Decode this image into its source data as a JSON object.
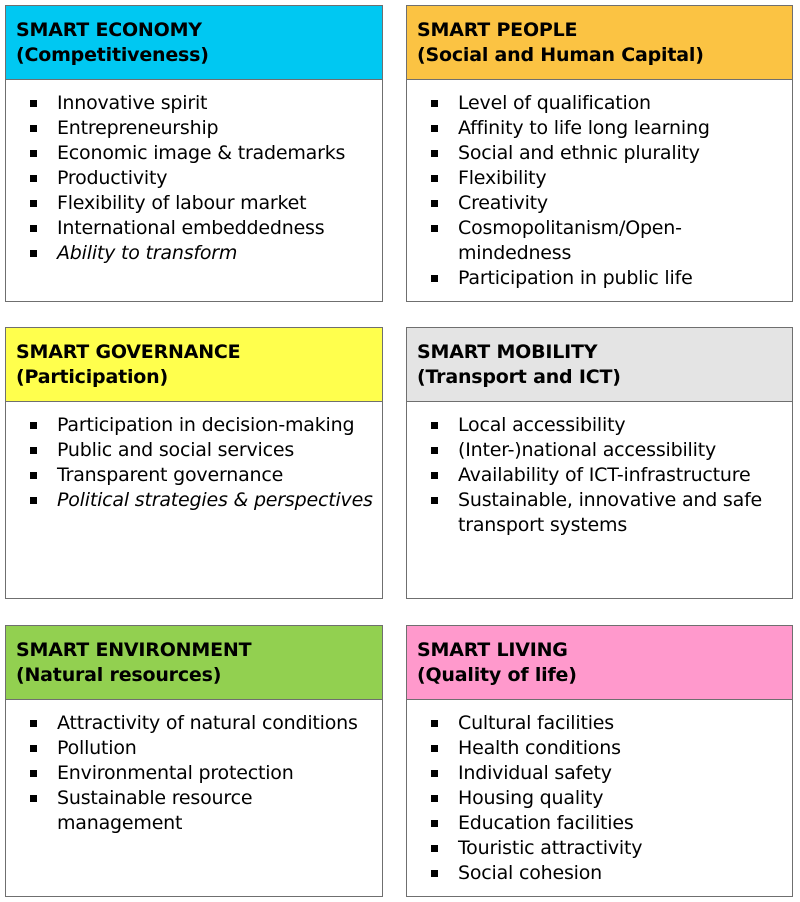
{
  "colors": {
    "economy": "#00c8f2",
    "people": "#fbc343",
    "governance": "#ffff4d",
    "mobility": "#e4e4e4",
    "environment": "#92d050",
    "living": "#ff99cc",
    "border": "#6f6f6f"
  },
  "cards": [
    {
      "id": "economy",
      "title": "SMART ECONOMY",
      "subtitle": "(Competitiveness)",
      "items": [
        {
          "text": "Innovative spirit",
          "italic": false
        },
        {
          "text": "Entrepreneurship",
          "italic": false
        },
        {
          "text": "Economic image & trademarks",
          "italic": false
        },
        {
          "text": "Productivity",
          "italic": false
        },
        {
          "text": "Flexibility of labour market",
          "italic": false
        },
        {
          "text": "International embeddedness",
          "italic": false
        },
        {
          "text": "Ability to transform",
          "italic": true
        }
      ]
    },
    {
      "id": "people",
      "title": "SMART PEOPLE",
      "subtitle": "(Social and Human Capital)",
      "items": [
        {
          "text": "Level of qualification",
          "italic": false
        },
        {
          "text": "Affinity to life long learning",
          "italic": false
        },
        {
          "text": "Social and ethnic plurality",
          "italic": false
        },
        {
          "text": "Flexibility",
          "italic": false
        },
        {
          "text": "Creativity",
          "italic": false
        },
        {
          "text": "Cosmopolitanism/Open-mindedness",
          "italic": false
        },
        {
          "text": "Participation in public life",
          "italic": false
        }
      ]
    },
    {
      "id": "governance",
      "title": "SMART GOVERNANCE",
      "subtitle": "(Participation)",
      "items": [
        {
          "text": "Participation in decision-making",
          "italic": false
        },
        {
          "text": "Public and social services",
          "italic": false
        },
        {
          "text": "Transparent governance",
          "italic": false
        },
        {
          "text": "Political strategies & perspectives",
          "italic": true
        }
      ]
    },
    {
      "id": "mobility",
      "title": "SMART MOBILITY",
      "subtitle": "(Transport and ICT)",
      "items": [
        {
          "text": "Local accessibility",
          "italic": false
        },
        {
          "text": "(Inter-)national accessibility",
          "italic": false
        },
        {
          "text": "Availability of ICT-infrastructure",
          "italic": false
        },
        {
          "text": "Sustainable, innovative and safe transport systems",
          "italic": false
        }
      ]
    },
    {
      "id": "environment",
      "title": "SMART ENVIRONMENT",
      "subtitle": "(Natural resources)",
      "items": [
        {
          "text": "Attractivity of natural conditions",
          "italic": false
        },
        {
          "text": "Pollution",
          "italic": false
        },
        {
          "text": "Environmental protection",
          "italic": false
        },
        {
          "text": "Sustainable resource management",
          "italic": false
        }
      ]
    },
    {
      "id": "living",
      "title": "SMART LIVING",
      "subtitle": "(Quality of life)",
      "items": [
        {
          "text": "Cultural facilities",
          "italic": false
        },
        {
          "text": "Health conditions",
          "italic": false
        },
        {
          "text": "Individual safety",
          "italic": false
        },
        {
          "text": "Housing quality",
          "italic": false
        },
        {
          "text": "Education facilities",
          "italic": false
        },
        {
          "text": "Touristic attractivity",
          "italic": false
        },
        {
          "text": "Social cohesion",
          "italic": false
        }
      ]
    }
  ]
}
